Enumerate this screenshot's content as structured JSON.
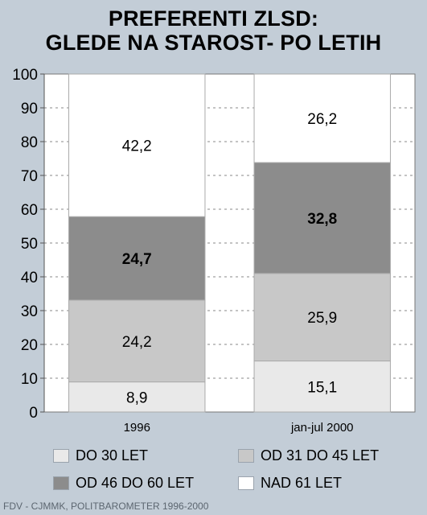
{
  "chart_data": {
    "type": "bar",
    "stacked": true,
    "title_lines": [
      "PREFERENTI ZLSD:",
      "GLEDE NA STAROST- PO LETIH"
    ],
    "categories": [
      "1996",
      "jan-jul 2000"
    ],
    "series": [
      {
        "name": "DO 30 LET",
        "values": [
          8.9,
          15.1
        ],
        "labels": [
          "8,9",
          "15,1"
        ],
        "color": "#e9e9e9",
        "bold": false
      },
      {
        "name": "OD 31 DO 45 LET",
        "values": [
          24.2,
          25.9
        ],
        "labels": [
          "24,2",
          "25,9"
        ],
        "color": "#c8c8c8",
        "bold": false
      },
      {
        "name": "OD 46 DO 60 LET",
        "values": [
          24.7,
          32.8
        ],
        "labels": [
          "24,7",
          "32,8"
        ],
        "color": "#8c8c8c",
        "bold": true
      },
      {
        "name": "NAD 61 LET",
        "values": [
          42.2,
          26.2
        ],
        "labels": [
          "42,2",
          "26,2"
        ],
        "color": "#ffffff",
        "bold": false
      }
    ],
    "ylim": [
      0,
      100
    ],
    "yticks": [
      0,
      10,
      20,
      30,
      40,
      50,
      60,
      70,
      80,
      90,
      100
    ],
    "plot_background": "#ffffff",
    "grid": true,
    "legend_position": "bottom"
  },
  "footer": "FDV - CJMMK, POLITBAROMETER 1996-2000"
}
